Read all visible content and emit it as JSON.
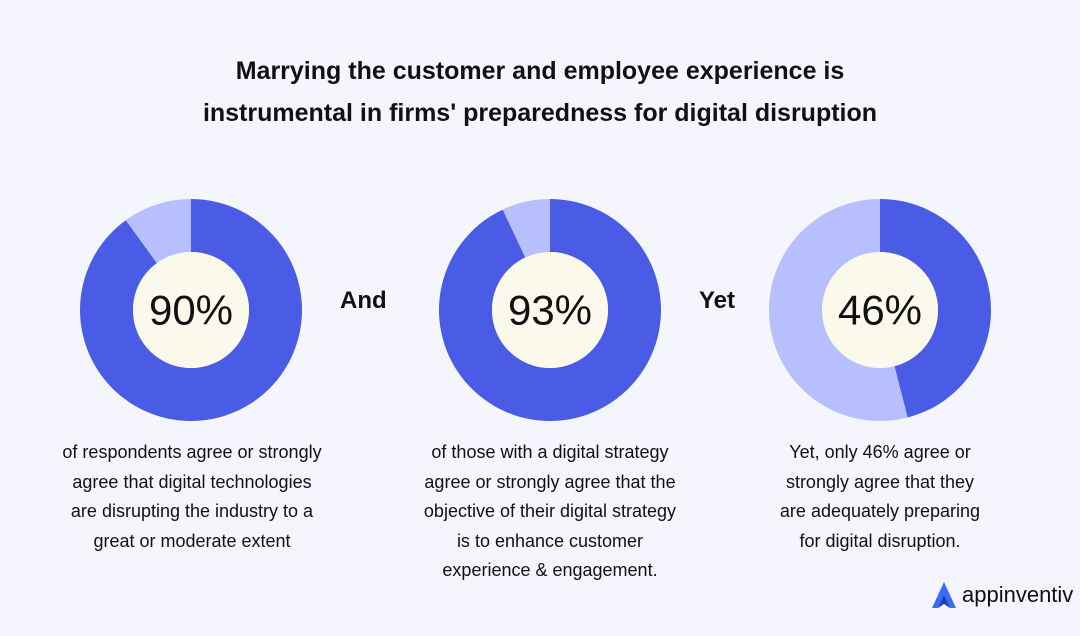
{
  "title": {
    "line1": "Marrying the customer and employee experience is",
    "line2": "instrumental in firms' preparedness for digital disruption"
  },
  "colors": {
    "primary": "#4a5be6",
    "secondary": "#b7bfff",
    "center": "#fbf9ec",
    "background": "#f4f5fd"
  },
  "chart_data": [
    {
      "type": "pie",
      "values": [
        90,
        10
      ],
      "label": "90%",
      "caption_lines": [
        "of respondents agree or strongly",
        "agree that digital technologies",
        "are disrupting the industry to a",
        "great or moderate extent"
      ]
    },
    {
      "type": "pie",
      "values": [
        93,
        7
      ],
      "label": "93%",
      "caption_lines": [
        "of those with a digital strategy",
        "agree or strongly agree that the",
        "objective of their digital strategy",
        "is to enhance customer",
        "experience & engagement."
      ]
    },
    {
      "type": "pie",
      "values": [
        46,
        54
      ],
      "label": "46%",
      "caption_lines": [
        "Yet, only 46% agree or",
        "strongly agree that they",
        "are adequately preparing",
        "for digital disruption."
      ]
    }
  ],
  "connectors": [
    "And",
    "Yet"
  ],
  "brand": {
    "name": "appinventiv",
    "icon": "appinventiv-logo-icon"
  }
}
